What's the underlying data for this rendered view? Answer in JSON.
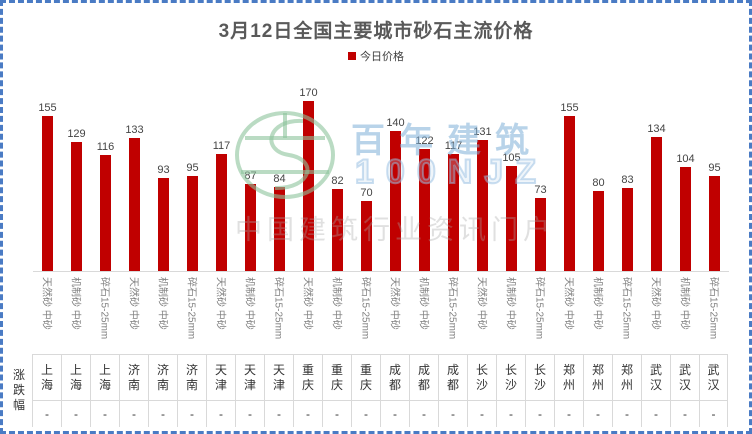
{
  "title": "3月12日全国主要城市砂石主流价格",
  "legend": {
    "label": "今日价格",
    "color": "#C00000"
  },
  "colors": {
    "bar": "#C00000",
    "frame_border": "#4a7bc4",
    "title_text": "#595959",
    "axis_label_text": "#808080",
    "value_label_text": "#444444",
    "table_border": "#d9d9d9"
  },
  "watermark": {
    "brand": "百年建筑",
    "code": "100NJZ",
    "slogan": "中国建筑行业资讯门户"
  },
  "table": {
    "row_header": "涨跌幅",
    "change_placeholder": "-"
  },
  "chart_data": {
    "type": "bar",
    "title": "3月12日全国主要城市砂石主流价格",
    "series_name": "今日价格",
    "ylabel": "",
    "xlabel": "",
    "ylim": [
      0,
      180
    ],
    "grid": false,
    "legend_position": "top-center",
    "bar_color": "#C00000",
    "cities": [
      "上海",
      "济南",
      "天津",
      "重庆",
      "成都",
      "长沙",
      "郑州",
      "武汉"
    ],
    "spec_pattern": [
      "天然砂 中砂",
      "机制砂 中砂",
      "碎石15-25mm"
    ],
    "points": [
      {
        "city": "上海",
        "spec": "天然砂 中砂",
        "value": 155,
        "change": "-"
      },
      {
        "city": "上海",
        "spec": "机制砂 中砂",
        "value": 129,
        "change": "-"
      },
      {
        "city": "上海",
        "spec": "碎石15-25mm",
        "value": 116,
        "change": "-"
      },
      {
        "city": "济南",
        "spec": "天然砂 中砂",
        "value": 133,
        "change": "-"
      },
      {
        "city": "济南",
        "spec": "机制砂 中砂",
        "value": 93,
        "change": "-"
      },
      {
        "city": "济南",
        "spec": "碎石15-25mm",
        "value": 95,
        "change": "-"
      },
      {
        "city": "天津",
        "spec": "天然砂 中砂",
        "value": 117,
        "change": "-"
      },
      {
        "city": "天津",
        "spec": "机制砂 中砂",
        "value": 87,
        "change": "-"
      },
      {
        "city": "天津",
        "spec": "碎石15-25mm",
        "value": 84,
        "change": "-"
      },
      {
        "city": "重庆",
        "spec": "天然砂 中砂",
        "value": 170,
        "change": "-"
      },
      {
        "city": "重庆",
        "spec": "机制砂 中砂",
        "value": 82,
        "change": "-"
      },
      {
        "city": "重庆",
        "spec": "碎石15-25mm",
        "value": 70,
        "change": "-"
      },
      {
        "city": "成都",
        "spec": "天然砂 中砂",
        "value": 140,
        "change": "-"
      },
      {
        "city": "成都",
        "spec": "机制砂 中砂",
        "value": 122,
        "change": "-"
      },
      {
        "city": "成都",
        "spec": "碎石15-25mm",
        "value": 117,
        "change": "-"
      },
      {
        "city": "长沙",
        "spec": "天然砂 中砂",
        "value": 131,
        "change": "-"
      },
      {
        "city": "长沙",
        "spec": "机制砂 中砂",
        "value": 105,
        "change": "-"
      },
      {
        "city": "长沙",
        "spec": "碎石15-25mm",
        "value": 73,
        "change": "-"
      },
      {
        "city": "郑州",
        "spec": "天然砂 中砂",
        "value": 155,
        "change": "-"
      },
      {
        "city": "郑州",
        "spec": "机制砂 中砂",
        "value": 80,
        "change": "-"
      },
      {
        "city": "郑州",
        "spec": "碎石15-25mm",
        "value": 83,
        "change": "-"
      },
      {
        "city": "武汉",
        "spec": "天然砂 中砂",
        "value": 134,
        "change": "-"
      },
      {
        "city": "武汉",
        "spec": "机制砂 中砂",
        "value": 104,
        "change": "-"
      },
      {
        "city": "武汉",
        "spec": "碎石15-25mm",
        "value": 95,
        "change": "-"
      }
    ]
  }
}
